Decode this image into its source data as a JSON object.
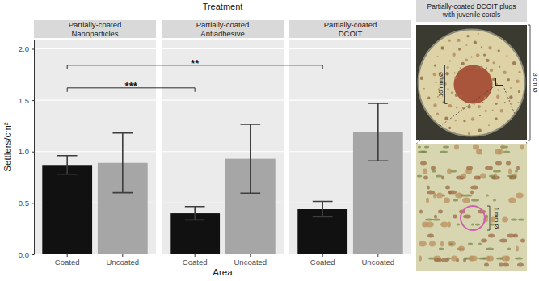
{
  "chart_data": {
    "type": "bar",
    "title": "Treatment",
    "x_label": "Area",
    "y_label": "Settlers/cm²",
    "ylim": [
      0,
      2.09
    ],
    "yticks": [
      {
        "value": 0,
        "label": "0.0"
      },
      {
        "value": 0.5,
        "label": "0.5"
      },
      {
        "value": 1,
        "label": "1.0"
      },
      {
        "value": 1.5,
        "label": "1.5"
      },
      {
        "value": 2,
        "label": "2.0"
      }
    ],
    "grid": true,
    "panels": [
      {
        "title": [
          "Partially-coated",
          "Nanoparticles"
        ],
        "categories": [
          "Coated",
          "Uncoated"
        ],
        "values": [
          0.87,
          0.89
        ],
        "errors": [
          0.09,
          0.29
        ],
        "colors": [
          "#111111",
          "#a6a6a6"
        ]
      },
      {
        "title": [
          "Partially-coated",
          "Antiadhesive"
        ],
        "categories": [
          "Coated",
          "Uncoated"
        ],
        "values": [
          0.4,
          0.93
        ],
        "errors": [
          0.065,
          0.335
        ],
        "colors": [
          "#111111",
          "#a6a6a6"
        ]
      },
      {
        "title": [
          "Partially-coated",
          "DCOIT"
        ],
        "categories": [
          "Coated",
          "Uncoated"
        ],
        "values": [
          0.44,
          1.19
        ],
        "errors": [
          0.075,
          0.28
        ],
        "colors": [
          "#111111",
          "#a6a6a6"
        ]
      }
    ],
    "annotations": [
      {
        "label": "***",
        "from": {
          "panel": 0,
          "category": 0
        },
        "to": {
          "panel": 1,
          "category": 0
        },
        "y": 1.62
      },
      {
        "label": "**",
        "from": {
          "panel": 0,
          "category": 0
        },
        "to": {
          "panel": 2,
          "category": 0
        },
        "y": 1.84
      }
    ],
    "image": {
      "title": [
        "Partially-coated DCOIT plugs",
        "with juvenile corals"
      ],
      "labels": [
        "10 mm Ø",
        "3 cm Ø",
        "1 mm Ø"
      ]
    }
  }
}
